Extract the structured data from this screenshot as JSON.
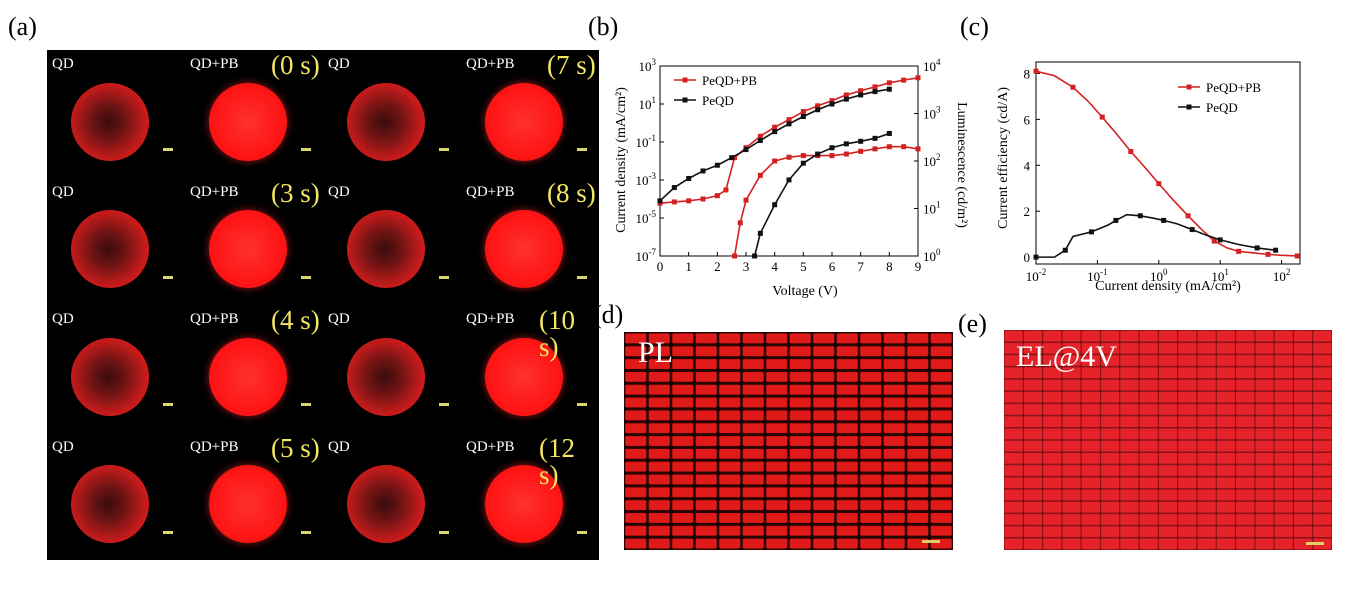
{
  "panel_labels": {
    "a": "(a)",
    "b": "(b)",
    "c": "(c)",
    "d": "(d)",
    "e": "(e)"
  },
  "panel_a": {
    "cells": [
      {
        "label": "QD",
        "time": "",
        "state": "dark"
      },
      {
        "label": "QD+PB",
        "time": "(0 s)",
        "state": "bright"
      },
      {
        "label": "QD",
        "time": "",
        "state": "dark"
      },
      {
        "label": "QD+PB",
        "time": "(7 s)",
        "state": "bright"
      },
      {
        "label": "QD",
        "time": "",
        "state": "dark"
      },
      {
        "label": "QD+PB",
        "time": "(3 s)",
        "state": "bright"
      },
      {
        "label": "QD",
        "time": "",
        "state": "dark"
      },
      {
        "label": "QD+PB",
        "time": "(8 s)",
        "state": "bright"
      },
      {
        "label": "QD",
        "time": "",
        "state": "dark"
      },
      {
        "label": "QD+PB",
        "time": "(4 s)",
        "state": "bright"
      },
      {
        "label": "QD",
        "time": "",
        "state": "dark"
      },
      {
        "label": "QD+PB",
        "time": "(10 s)",
        "state": "bright"
      },
      {
        "label": "QD",
        "time": "",
        "state": "dark"
      },
      {
        "label": "QD+PB",
        "time": "(5 s)",
        "state": "bright"
      },
      {
        "label": "QD",
        "time": "",
        "state": "dark"
      },
      {
        "label": "QD+PB",
        "time": "(12 s)",
        "state": "bright"
      }
    ]
  },
  "panel_d": {
    "caption": "PL"
  },
  "panel_e": {
    "caption": "EL@4V"
  },
  "chart_data": [
    {
      "panel": "b",
      "type": "line",
      "xlabel": "Voltage (V)",
      "ylabel": "Current density (mA/cm²)",
      "ylabel_right": "Luminescence (cd/m²)",
      "xlim": [
        0,
        9
      ],
      "xticks": [
        "0",
        "1",
        "2",
        "3",
        "4",
        "5",
        "6",
        "7",
        "8",
        "9"
      ],
      "ylim_log10": [
        -7,
        3
      ],
      "yticks": [
        {
          "base": "10",
          "exp": "3"
        },
        {
          "base": "10",
          "exp": "1"
        },
        {
          "base": "10",
          "exp": "-1"
        },
        {
          "base": "10",
          "exp": "-3"
        },
        {
          "base": "10",
          "exp": "-5"
        },
        {
          "base": "10",
          "exp": "-7"
        }
      ],
      "y2lim_log10": [
        0,
        4
      ],
      "y2ticks": [
        {
          "base": "10",
          "exp": "4"
        },
        {
          "base": "10",
          "exp": "3"
        },
        {
          "base": "10",
          "exp": "2"
        },
        {
          "base": "10",
          "exp": "1"
        },
        {
          "base": "10",
          "exp": "0"
        }
      ],
      "legend_position": "top-left",
      "series": [
        {
          "name": "PeQD+PB",
          "color": "#d42020",
          "axis": "left",
          "x": [
            0,
            0.5,
            1,
            1.5,
            2,
            2.3,
            2.6,
            3,
            3.5,
            4,
            4.5,
            5,
            5.5,
            6,
            6.5,
            7,
            7.5,
            8,
            8.5,
            9
          ],
          "y": [
            6e-05,
            7e-05,
            8e-05,
            0.0001,
            0.00015,
            0.0003,
            0.015,
            0.05,
            0.2,
            0.6,
            1.5,
            4,
            8,
            15,
            30,
            50,
            80,
            130,
            180,
            240
          ]
        },
        {
          "name": "PeQD",
          "color": "#111111",
          "axis": "left",
          "x": [
            0,
            0.5,
            1,
            1.5,
            2,
            2.5,
            3,
            3.5,
            4,
            4.5,
            5,
            5.5,
            6,
            6.5,
            7,
            7.5,
            8
          ],
          "y": [
            8e-05,
            0.0004,
            0.0012,
            0.003,
            0.006,
            0.015,
            0.04,
            0.12,
            0.35,
            0.9,
            2.2,
            5,
            10,
            18,
            30,
            45,
            60
          ]
        },
        {
          "name": "PeQD+PB luminance",
          "color": "#d42020",
          "axis": "right",
          "x": [
            2.6,
            2.8,
            3,
            3.5,
            4,
            4.5,
            5,
            5.5,
            6,
            6.5,
            7,
            7.5,
            8,
            8.5,
            9
          ],
          "y": [
            1,
            5,
            15,
            50,
            100,
            120,
            130,
            130,
            130,
            140,
            160,
            180,
            200,
            200,
            180
          ]
        },
        {
          "name": "PeQD luminance",
          "color": "#111111",
          "axis": "right",
          "x": [
            3.3,
            3.5,
            4,
            4.5,
            5,
            5.5,
            6,
            6.5,
            7,
            7.5,
            8
          ],
          "y": [
            1,
            3,
            12,
            40,
            90,
            140,
            190,
            230,
            260,
            300,
            380
          ]
        }
      ]
    },
    {
      "panel": "c",
      "type": "line",
      "xlabel": "Current density (mA/cm²)",
      "ylabel": "Current efficiency (cd/A)",
      "xlim_log10": [
        -2,
        2.3
      ],
      "xticks": [
        {
          "base": "10",
          "exp": "-2"
        },
        {
          "base": "10",
          "exp": "-1"
        },
        {
          "base": "10",
          "exp": "0"
        },
        {
          "base": "10",
          "exp": "1"
        },
        {
          "base": "10",
          "exp": "2"
        }
      ],
      "ylim": [
        -0.3,
        8.5
      ],
      "yticks": [
        "0",
        "2",
        "4",
        "6",
        "8"
      ],
      "legend_position": "top-right",
      "series": [
        {
          "name": "PeQD+PB",
          "color": "#d42020",
          "x": [
            0.01,
            0.02,
            0.04,
            0.07,
            0.12,
            0.2,
            0.35,
            0.6,
            1,
            1.7,
            3,
            5,
            8,
            13,
            20,
            35,
            60,
            100,
            180
          ],
          "y": [
            8.1,
            7.9,
            7.4,
            6.8,
            6.1,
            5.4,
            4.6,
            3.9,
            3.2,
            2.5,
            1.8,
            1.2,
            0.7,
            0.4,
            0.25,
            0.18,
            0.12,
            0.08,
            0.05
          ]
        },
        {
          "name": "PeQD",
          "color": "#111111",
          "x": [
            0.01,
            0.02,
            0.03,
            0.04,
            0.08,
            0.15,
            0.2,
            0.3,
            0.5,
            0.8,
            1.2,
            2,
            3.5,
            6,
            10,
            20,
            40,
            80
          ],
          "y": [
            0,
            0,
            0.3,
            0.9,
            1.1,
            1.4,
            1.6,
            1.85,
            1.8,
            1.7,
            1.6,
            1.45,
            1.2,
            0.95,
            0.75,
            0.55,
            0.4,
            0.3
          ]
        }
      ]
    }
  ],
  "colors": {
    "red_emission": "#ff1a1a",
    "dark_bg": "#000000",
    "legend_red": "#d42020",
    "time_label": "#f4e663"
  }
}
